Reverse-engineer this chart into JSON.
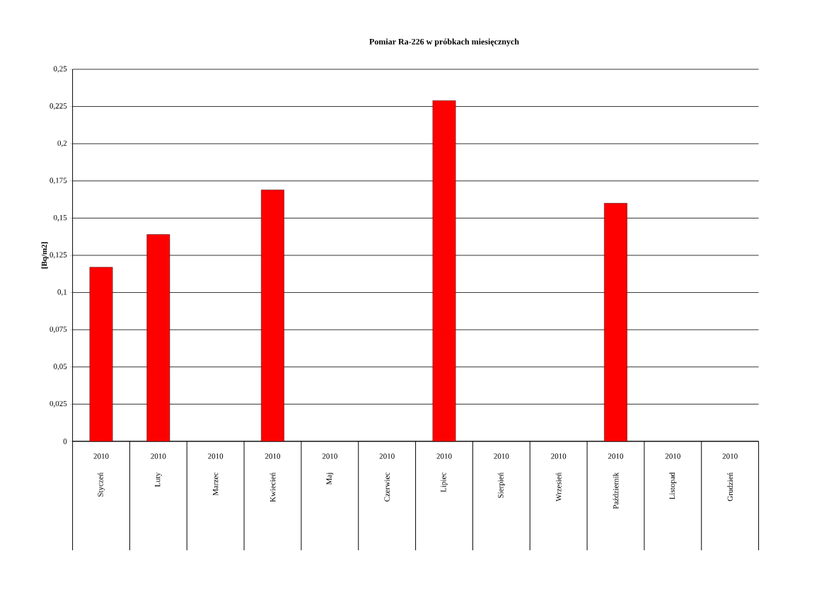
{
  "chart_data": {
    "type": "bar",
    "title": "Pomiar Ra-226 w próbkach miesięcznych",
    "ylabel": "[Bq/m2]",
    "categories": [
      "Styczeń",
      "Luty",
      "Marzec",
      "Kwiecień",
      "Maj",
      "Czerwiec",
      "Lipiec",
      "Sierpień",
      "Wrzesień",
      "Październik",
      "Listopad",
      "Grudzień"
    ],
    "annotations": [
      "2010",
      "2010",
      "2010",
      "2010",
      "2010",
      "2010",
      "2010",
      "2010",
      "2010",
      "2010",
      "2010",
      "2010"
    ],
    "values": [
      0.117,
      0.139,
      null,
      0.169,
      null,
      null,
      0.229,
      null,
      null,
      0.16,
      null,
      null
    ],
    "color": "#ff0000",
    "ylim": [
      0,
      0.25
    ],
    "yticks": [
      {
        "value": 0,
        "label": "0"
      },
      {
        "value": 0.025,
        "label": "0,025"
      },
      {
        "value": 0.05,
        "label": "0,05"
      },
      {
        "value": 0.075,
        "label": "0,075"
      },
      {
        "value": 0.1,
        "label": "0,1"
      },
      {
        "value": 0.125,
        "label": "0,125"
      },
      {
        "value": 0.15,
        "label": "0,15"
      },
      {
        "value": 0.175,
        "label": "0,175"
      },
      {
        "value": 0.2,
        "label": "0,2"
      },
      {
        "value": 0.225,
        "label": "0,225"
      },
      {
        "value": 0.25,
        "label": "0,25"
      }
    ],
    "grid": "y"
  }
}
